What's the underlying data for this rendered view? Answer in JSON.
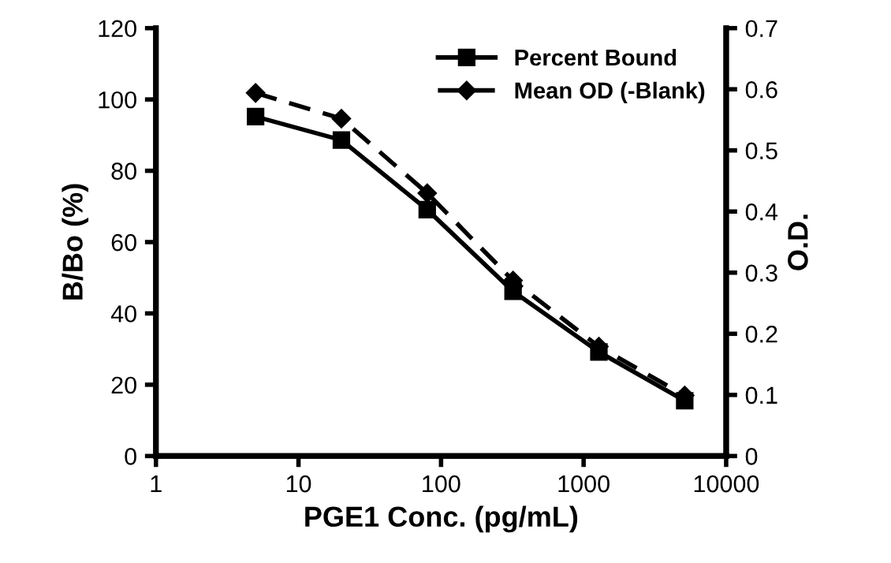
{
  "chart_data": {
    "type": "line",
    "xlabel": "PGE1 Conc. (pg/mL)",
    "ylabel": "B/Bo (%)",
    "y2label": "O.D.",
    "log": "x",
    "x": [
      5,
      20,
      80,
      320,
      1280,
      5120
    ],
    "series": [
      {
        "name": "Percent Bound",
        "color": "#000000",
        "marker": "square",
        "line_style": "solid",
        "values": [
          95.2,
          88.6,
          69.1,
          46.2,
          29.2,
          15.5
        ]
      },
      {
        "name": "Mean OD (-Blank)",
        "color": "#000000",
        "marker": "diamond",
        "line_style": "dashed",
        "axis": "y2",
        "values": [
          0.594,
          0.552,
          0.43,
          0.287,
          0.179,
          0.099
        ]
      }
    ],
    "xlim": [
      1,
      10000
    ],
    "xticks": [
      1,
      10,
      100,
      1000,
      10000
    ],
    "ylim": [
      0,
      120
    ],
    "yticks": [
      0,
      20,
      40,
      60,
      80,
      100,
      120
    ],
    "y2lim": [
      0,
      0.7
    ],
    "y2ticks": [
      0,
      0.1,
      0.2,
      0.3,
      0.4,
      0.5,
      0.6,
      0.7
    ],
    "grid": false,
    "legend": "top right"
  }
}
